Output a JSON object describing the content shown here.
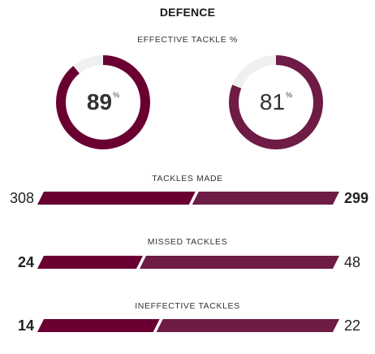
{
  "header": {
    "title": "DEFENCE"
  },
  "effective_tackle": {
    "label": "EFFECTIVE TACKLE %",
    "home": {
      "value": "89",
      "unit": "%",
      "fraction": 0.89
    },
    "away": {
      "value": "81",
      "unit": "%",
      "fraction": 0.81
    }
  },
  "stats": [
    {
      "label": "TACKLES MADE",
      "home": "308",
      "away": "299",
      "home_num": 308,
      "away_num": 299,
      "leader": "home"
    },
    {
      "label": "MISSED TACKLES",
      "home": "24",
      "away": "48",
      "home_num": 24,
      "away_num": 48,
      "leader": "home"
    },
    {
      "label": "INEFFECTIVE TACKLES",
      "home": "14",
      "away": "22",
      "home_num": 14,
      "away_num": 22,
      "leader": "home"
    }
  ],
  "colors": {
    "home": "#6a0032",
    "away": "#6e1b46",
    "track": "#f0f0f0"
  }
}
